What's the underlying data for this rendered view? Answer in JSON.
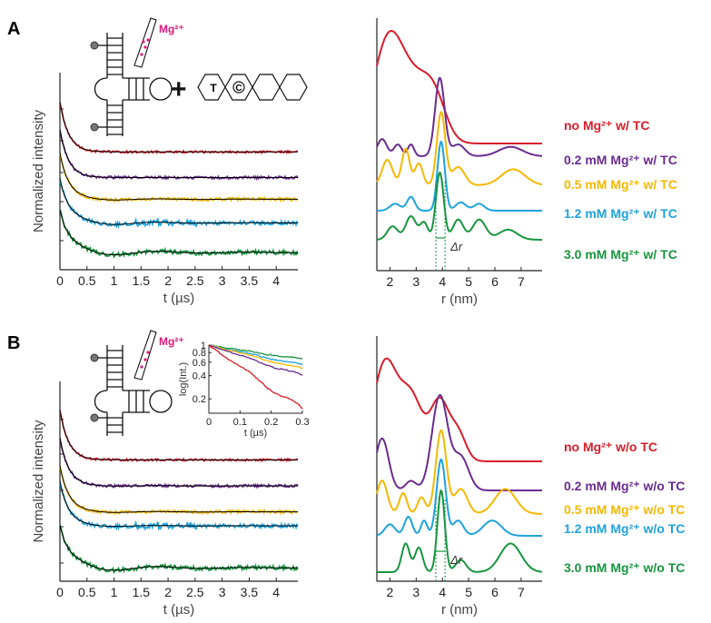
{
  "colors": {
    "red": "#d91c2a",
    "purple": "#6a2c8f",
    "yellow": "#f5b800",
    "blue": "#1ea2dd",
    "green": "#17953f",
    "fit": "#000000",
    "magenta": "#e0187a"
  },
  "chart_data": [
    {
      "panel": "A",
      "type": "line",
      "subplot": "time-domain traces",
      "ylabel": "Normalized intensity",
      "xlabel": "t (µs)",
      "xticks": [
        "0",
        "0.5",
        "1",
        "1.5",
        "2",
        "2.5",
        "3",
        "3.5",
        "4"
      ],
      "xlim": [
        0,
        4.4
      ],
      "series": [
        {
          "color": "red",
          "plateau": 0.57,
          "osc_amp": 0.0
        },
        {
          "color": "purple",
          "plateau": 0.44,
          "osc_amp": 0.0
        },
        {
          "color": "yellow",
          "plateau": 0.33,
          "osc_amp": 0.25
        },
        {
          "color": "blue",
          "plateau": 0.21,
          "osc_amp": 0.5
        },
        {
          "color": "green",
          "plateau": 0.06,
          "osc_amp": 0.75
        }
      ]
    },
    {
      "panel": "A",
      "type": "line",
      "subplot": "distance distributions",
      "xlabel": "r (nm)",
      "xticks": [
        "2",
        "3",
        "4",
        "5",
        "6",
        "7"
      ],
      "xlim": [
        1.5,
        7.8
      ],
      "series": [
        {
          "name": "no Mg²⁺ w/ TC",
          "color": "red"
        },
        {
          "name": "0.2 mM Mg²⁺ w/ TC",
          "color": "purple"
        },
        {
          "name": "0.5 mM Mg²⁺ w/ TC",
          "color": "yellow"
        },
        {
          "name": "1.2 mM Mg²⁺ w/ TC",
          "color": "blue"
        },
        {
          "name": "3.0 mM Mg²⁺ w/ TC",
          "color": "green"
        }
      ],
      "annotation": "Δr"
    },
    {
      "panel": "B",
      "type": "line",
      "subplot": "time-domain traces",
      "ylabel": "Normalized intensity",
      "xlabel": "t (µs)",
      "xticks": [
        "0",
        "0.5",
        "1",
        "1.5",
        "2",
        "2.5",
        "3",
        "3.5",
        "4"
      ],
      "xlim": [
        0,
        4.4
      ],
      "series": [
        {
          "color": "red",
          "plateau": 0.58,
          "osc_amp": 0.0
        },
        {
          "color": "purple",
          "plateau": 0.45,
          "osc_amp": 0.1
        },
        {
          "color": "yellow",
          "plateau": 0.32,
          "osc_amp": 0.2
        },
        {
          "color": "blue",
          "plateau": 0.25,
          "osc_amp": 0.2
        },
        {
          "color": "green",
          "plateau": 0.04,
          "osc_amp": 0.8
        }
      ],
      "inset": {
        "ylabel": "log(Int.)",
        "xlabel": "t (µs)",
        "yticks": [
          "1",
          "0.8",
          "0.6",
          "0.4",
          "0.2"
        ],
        "xticks": [
          "0",
          "0.1",
          "0.2",
          "0.3"
        ],
        "xlim": [
          0,
          0.3
        ]
      }
    },
    {
      "panel": "B",
      "type": "line",
      "subplot": "distance distributions",
      "xlabel": "r (nm)",
      "xticks": [
        "2",
        "3",
        "4",
        "5",
        "6",
        "7"
      ],
      "xlim": [
        1.5,
        7.8
      ],
      "series": [
        {
          "name": "no Mg²⁺ w/o TC",
          "color": "red"
        },
        {
          "name": "0.2 mM Mg²⁺ w/o TC",
          "color": "purple"
        },
        {
          "name": "0.5 mM Mg²⁺ w/o TC",
          "color": "yellow"
        },
        {
          "name": "1.2 mM Mg²⁺ w/o TC",
          "color": "blue"
        },
        {
          "name": "3.0 mM Mg²⁺ w/o TC",
          "color": "green"
        }
      ],
      "annotation": "Δr"
    }
  ],
  "figure": {
    "panel_a_label": "A",
    "panel_b_label": "B",
    "mg_label_a": "Mg²⁺",
    "mg_label_b": "Mg²⁺",
    "plus_sign": "+",
    "tc_letter_t": "T",
    "tc_letter_c": "C"
  }
}
